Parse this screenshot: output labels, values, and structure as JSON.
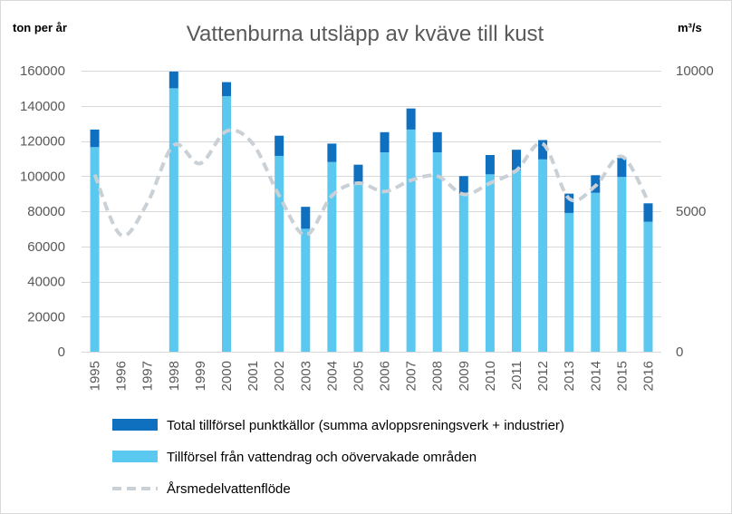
{
  "chart_data": {
    "type": "bar",
    "title": "Vattenburna utsläpp av kväve till kust",
    "ylabel": "ton per år",
    "y2label": "m³/s",
    "ylim": [
      0,
      160000
    ],
    "y_ticks": [
      0,
      20000,
      40000,
      60000,
      80000,
      100000,
      120000,
      140000,
      160000
    ],
    "y2lim": [
      0,
      10000
    ],
    "y2_ticks": [
      0,
      5000,
      10000
    ],
    "categories": [
      "1995",
      "1996",
      "1997",
      "1998",
      "1999",
      "2000",
      "2001",
      "2002",
      "2003",
      "2004",
      "2005",
      "2006",
      "2007",
      "2008",
      "2009",
      "2010",
      "2011",
      "2012",
      "2013",
      "2014",
      "2015",
      "2016"
    ],
    "series": [
      {
        "name": "Tillförsel från vattendrag och oövervakade områden",
        "kind": "bar-stacked",
        "color": "#5bc8f0",
        "values": [
          116500,
          null,
          null,
          150000,
          null,
          145500,
          null,
          111500,
          70000,
          108000,
          95500,
          113500,
          126500,
          113500,
          89500,
          101000,
          103500,
          109500,
          79000,
          90500,
          99500,
          74000
        ]
      },
      {
        "name": "Total tillförsel punktkällor (summa avloppsreningsverk + industrier)",
        "kind": "bar-stacked",
        "color": "#0f70c0",
        "values": [
          10000,
          null,
          null,
          9500,
          null,
          8000,
          null,
          11500,
          12500,
          10500,
          11000,
          11500,
          12000,
          11500,
          10500,
          11000,
          11500,
          11000,
          11000,
          10000,
          11000,
          10500
        ]
      },
      {
        "name": "Årsmedelvattenflöde",
        "kind": "line-dashed",
        "axis": "right",
        "color": "#c9d0d6",
        "values": [
          6300,
          4150,
          5300,
          7350,
          6700,
          7850,
          7400,
          5550,
          4150,
          5550,
          6000,
          5700,
          6100,
          6250,
          5600,
          6000,
          6450,
          7400,
          5450,
          5900,
          6950,
          5350
        ]
      }
    ],
    "legend": {
      "position": "bottom",
      "items": [
        "Total tillförsel punktkällor (summa avloppsreningsverk + industrier)",
        "Tillförsel från vattendrag och oövervakade områden",
        "Årsmedelvattenflöde"
      ]
    },
    "grid": "horizontal"
  }
}
